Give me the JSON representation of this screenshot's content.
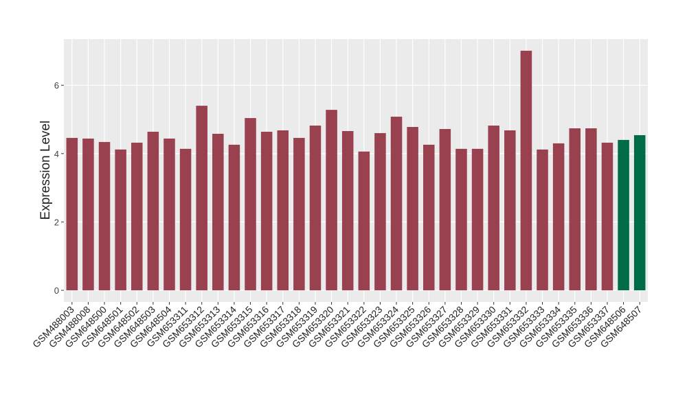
{
  "chart_data": {
    "type": "bar",
    "y_label": "Expression Level",
    "categories": [
      "GSM488003",
      "GSM488008",
      "GSM648500",
      "GSM648501",
      "GSM648502",
      "GSM648503",
      "GSM648504",
      "GSM653311",
      "GSM653312",
      "GSM653313",
      "GSM653314",
      "GSM653315",
      "GSM653316",
      "GSM653317",
      "GSM653318",
      "GSM653319",
      "GSM653320",
      "GSM653321",
      "GSM653322",
      "GSM653323",
      "GSM653324",
      "GSM653325",
      "GSM653326",
      "GSM653327",
      "GSM653328",
      "GSM653329",
      "GSM653330",
      "GSM653331",
      "GSM653332",
      "GSM653333",
      "GSM653334",
      "GSM653335",
      "GSM653336",
      "GSM653337",
      "GSM648506",
      "GSM648507"
    ],
    "values": [
      4.46,
      4.44,
      4.34,
      4.12,
      4.32,
      4.64,
      4.44,
      4.14,
      5.4,
      4.58,
      4.26,
      5.04,
      4.64,
      4.68,
      4.46,
      4.82,
      5.28,
      4.66,
      4.06,
      4.6,
      5.08,
      4.78,
      4.26,
      4.72,
      4.14,
      4.14,
      4.82,
      4.68,
      7.01,
      4.12,
      4.3,
      4.74,
      4.74,
      4.32,
      4.4,
      4.54
    ],
    "colors": [
      "#9a4150",
      "#9a4150",
      "#9a4150",
      "#9a4150",
      "#9a4150",
      "#9a4150",
      "#9a4150",
      "#9a4150",
      "#9a4150",
      "#9a4150",
      "#9a4150",
      "#9a4150",
      "#9a4150",
      "#9a4150",
      "#9a4150",
      "#9a4150",
      "#9a4150",
      "#9a4150",
      "#9a4150",
      "#9a4150",
      "#9a4150",
      "#9a4150",
      "#9a4150",
      "#9a4150",
      "#9a4150",
      "#9a4150",
      "#9a4150",
      "#9a4150",
      "#9a4150",
      "#9a4150",
      "#9a4150",
      "#9a4150",
      "#9a4150",
      "#9a4150",
      "#006b47",
      "#006b47"
    ],
    "ylim": [
      -0.34,
      7.35
    ],
    "yticks": [
      0,
      2,
      4,
      6
    ],
    "grid": true,
    "panel_color": "#ebebeb"
  }
}
